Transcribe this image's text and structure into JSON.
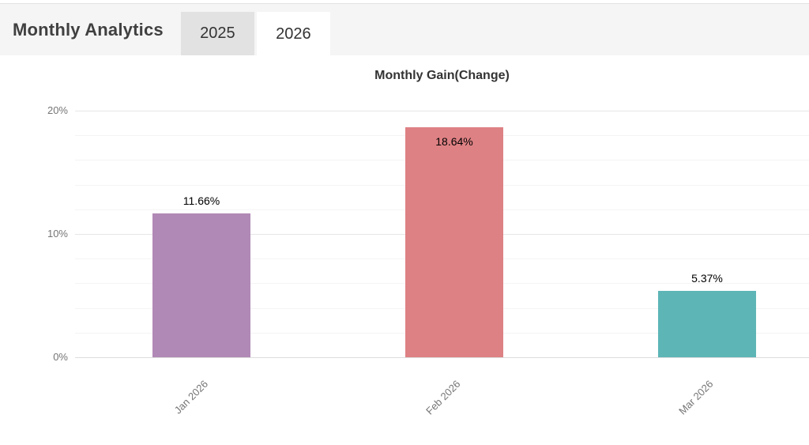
{
  "header": {
    "title": "Monthly Analytics",
    "tabs": [
      {
        "label": "2025",
        "active": false
      },
      {
        "label": "2026",
        "active": true
      }
    ]
  },
  "chart_data": {
    "type": "bar",
    "title": "Monthly Gain(Change)",
    "categories": [
      "Jan 2026",
      "Feb 2026",
      "Mar 2026"
    ],
    "values": [
      11.66,
      18.64,
      5.37
    ],
    "value_labels": [
      "11.66%",
      "18.64%",
      "5.37%"
    ],
    "bar_colors": [
      "#b189b6",
      "#de8184",
      "#5db5b6"
    ],
    "label_placement": [
      "above",
      "inside",
      "above"
    ],
    "xlabel": "",
    "ylabel": "",
    "ylim": [
      0,
      20
    ],
    "yticks": [
      0,
      10,
      20
    ],
    "ytick_labels": [
      "0%",
      "10%",
      "20%"
    ],
    "minor_tick_step": 2,
    "grid": "horizontal",
    "legend": false,
    "x_tick_rotation": -45,
    "value_label_color": "#000000"
  },
  "colors": {
    "header_bg": "#f5f5f5",
    "inactive_tab_bg": "#e2e2e2",
    "active_tab_bg": "#ffffff",
    "baseline_grid": "#dcdcdc",
    "major_grid": "#e6e6e6",
    "minor_grid": "#f4f4f4",
    "axis_text": "#757575"
  }
}
